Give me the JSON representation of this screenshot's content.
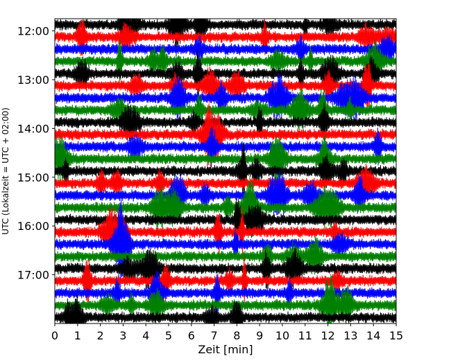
{
  "chart_data": {
    "type": "line",
    "subtype": "helicorder seismogram (stacked traces)",
    "title": "",
    "xlabel": "Zeit  [min]",
    "ylabel": "UTC (Lokalzeit = UTC + 02:00)",
    "xlim": [
      0,
      15
    ],
    "x_ticks": [
      "0",
      "1",
      "2",
      "3",
      "4",
      "5",
      "6",
      "7",
      "8",
      "9",
      "10",
      "11",
      "12",
      "13",
      "14",
      "15"
    ],
    "y_ticks": [
      "12:00",
      "13:00",
      "14:00",
      "15:00",
      "16:00",
      "17:00"
    ],
    "ylim_start_utc": "11:45",
    "ylim_end_utc": "18:00",
    "minutes_per_trace": 15,
    "trace_start_times_utc": [
      "11:45",
      "12:00",
      "12:15",
      "12:30",
      "12:45",
      "13:00",
      "13:15",
      "13:30",
      "13:45",
      "14:00",
      "14:15",
      "14:30",
      "14:45",
      "15:00",
      "15:15",
      "15:30",
      "15:45",
      "16:00",
      "16:15",
      "16:30",
      "16:45",
      "17:00",
      "17:15",
      "17:30",
      "17:45"
    ],
    "trace_colors_cycle": [
      "#000000",
      "#ff0000",
      "#0000ff",
      "#008000"
    ],
    "grid": false,
    "legend": "none"
  }
}
